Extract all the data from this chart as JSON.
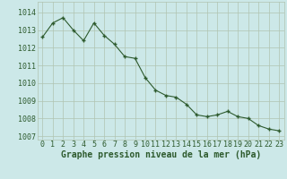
{
  "x": [
    0,
    1,
    2,
    3,
    4,
    5,
    6,
    7,
    8,
    9,
    10,
    11,
    12,
    13,
    14,
    15,
    16,
    17,
    18,
    19,
    20,
    21,
    22,
    23
  ],
  "y": [
    1012.6,
    1013.4,
    1013.7,
    1013.0,
    1012.4,
    1013.4,
    1012.7,
    1012.2,
    1011.5,
    1011.4,
    1010.3,
    1009.6,
    1009.3,
    1009.2,
    1008.8,
    1008.2,
    1008.1,
    1008.2,
    1008.4,
    1008.1,
    1008.0,
    1007.6,
    1007.4,
    1007.3
  ],
  "line_color": "#2d5a2d",
  "marker_color": "#2d5a2d",
  "bg_color": "#cce8e8",
  "grid_color": "#b0c4b0",
  "xlabel": "Graphe pression niveau de la mer (hPa)",
  "xlabel_color": "#2d5a2d",
  "tick_color": "#2d5a2d",
  "ylim": [
    1006.8,
    1014.6
  ],
  "xlim": [
    -0.5,
    23.5
  ],
  "yticks": [
    1007,
    1008,
    1009,
    1010,
    1011,
    1012,
    1013,
    1014
  ],
  "xticks": [
    0,
    1,
    2,
    3,
    4,
    5,
    6,
    7,
    8,
    9,
    10,
    11,
    12,
    13,
    14,
    15,
    16,
    17,
    18,
    19,
    20,
    21,
    22,
    23
  ],
  "xtick_labels": [
    "0",
    "1",
    "2",
    "3",
    "4",
    "5",
    "6",
    "7",
    "8",
    "9",
    "10",
    "11",
    "12",
    "13",
    "14",
    "15",
    "16",
    "17",
    "18",
    "19",
    "20",
    "21",
    "22",
    "23"
  ],
  "font_size": 6,
  "xlabel_fontsize": 7,
  "marker_size": 2.5,
  "linewidth": 0.8
}
